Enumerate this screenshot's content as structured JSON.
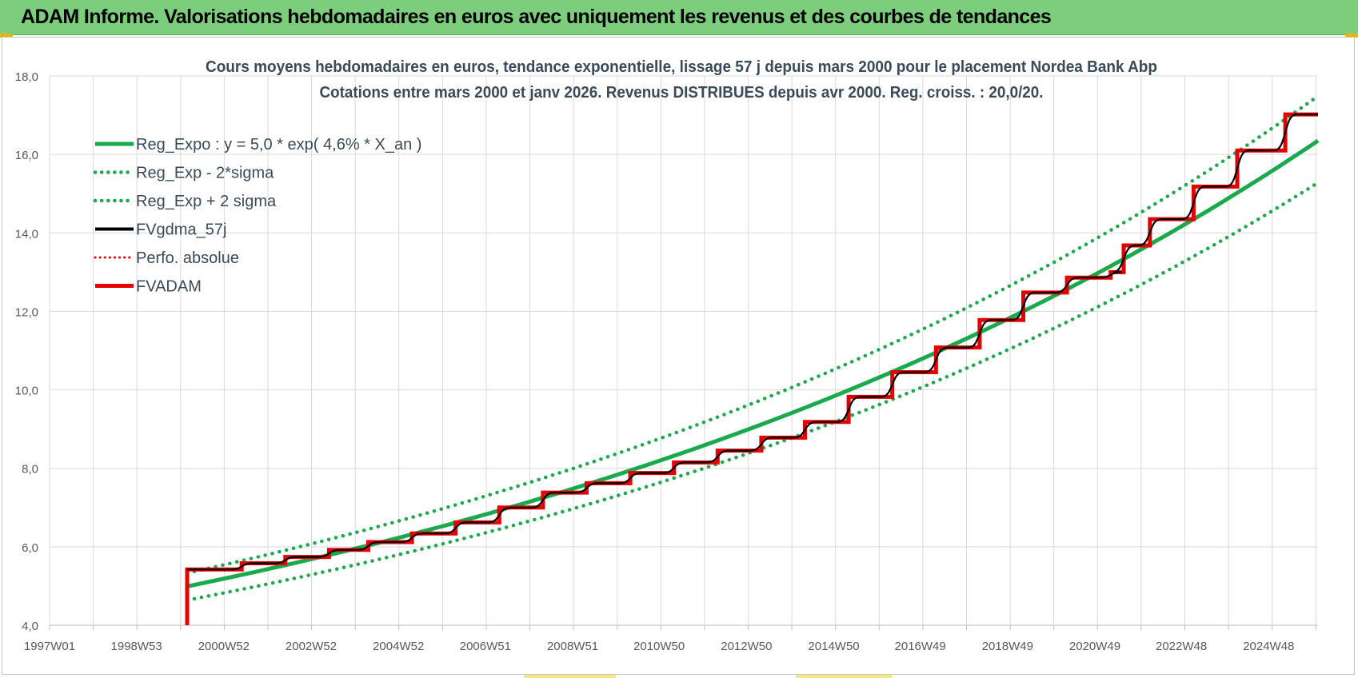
{
  "header": {
    "title": "ADAM Informe. Valorisations hebdomadaires en euros avec uniquement les revenus et des courbes de tendances"
  },
  "chart_data": {
    "type": "line",
    "title": "Cours moyens hebdomadaires en euros, tendance exponentielle, lissage 57 j depuis mars 2000 pour le placement Nordea Bank Abp",
    "subtitle": "Cotations entre mars 2000 et janv 2026. Revenus DISTRIBUES depuis avr 2000. Reg. croiss. : 20,0/20.",
    "xlabel": "",
    "ylabel": "",
    "ylim": [
      4.0,
      18.0
    ],
    "yticks": [
      "4,0",
      "6,0",
      "8,0",
      "10,0",
      "12,0",
      "14,0",
      "16,0",
      "18,0"
    ],
    "xlim": [
      1997.0,
      2026.05
    ],
    "xticks": [
      {
        "x": 1997.0,
        "label": "1997W01"
      },
      {
        "x": 1998.99,
        "label": "1998W53"
      },
      {
        "x": 2000.99,
        "label": "2000W52"
      },
      {
        "x": 2002.99,
        "label": "2002W52"
      },
      {
        "x": 2004.99,
        "label": "2004W52"
      },
      {
        "x": 2006.98,
        "label": "2006W51"
      },
      {
        "x": 2008.98,
        "label": "2008W51"
      },
      {
        "x": 2010.96,
        "label": "2010W50"
      },
      {
        "x": 2012.96,
        "label": "2012W50"
      },
      {
        "x": 2014.96,
        "label": "2014W50"
      },
      {
        "x": 2016.94,
        "label": "2016W49"
      },
      {
        "x": 2018.94,
        "label": "2018W49"
      },
      {
        "x": 2020.94,
        "label": "2020W49"
      },
      {
        "x": 2022.92,
        "label": "2022W48"
      },
      {
        "x": 2024.92,
        "label": "2024W48"
      }
    ],
    "grid": true,
    "legend_position": "top-left",
    "colors": {
      "trend": "#1aaa4c",
      "fvgdma": "#000000",
      "perfo": "#e00000",
      "fvadam": "#e60000",
      "grid": "#d9d9d9",
      "text": "#3a4a5a"
    },
    "series": [
      {
        "name": "Reg_Expo : y = 5,0 * exp( 4,6% *  X_an )",
        "style": "solid-green",
        "points": [
          [
            2000.15,
            4.99
          ],
          [
            2026.05,
            16.35
          ]
        ]
      },
      {
        "name": "Reg_Exp - 2*sigma",
        "style": "dotted-green",
        "points": [
          [
            2000.15,
            4.64
          ],
          [
            2026.05,
            15.28
          ]
        ]
      },
      {
        "name": "Reg_Exp + 2 sigma",
        "style": "dotted-green",
        "points": [
          [
            2000.15,
            5.33
          ],
          [
            2026.05,
            17.49
          ]
        ]
      },
      {
        "name": "FVgdma_57j",
        "style": "solid-black",
        "points": []
      },
      {
        "name": "Perfo. absolue",
        "style": "dotted-red",
        "points": []
      },
      {
        "name": "FVADAM",
        "style": "solid-red",
        "start": [
          2000.15,
          4.0
        ],
        "steps": [
          [
            2000.15,
            5.42
          ],
          [
            2001.4,
            5.58
          ],
          [
            2002.4,
            5.74
          ],
          [
            2003.4,
            5.92
          ],
          [
            2004.3,
            6.12
          ],
          [
            2005.3,
            6.34
          ],
          [
            2006.3,
            6.62
          ],
          [
            2007.3,
            7.0
          ],
          [
            2008.3,
            7.38
          ],
          [
            2009.3,
            7.62
          ],
          [
            2010.3,
            7.88
          ],
          [
            2011.3,
            8.15
          ],
          [
            2012.3,
            8.45
          ],
          [
            2013.3,
            8.78
          ],
          [
            2014.3,
            9.18
          ],
          [
            2015.3,
            9.82
          ],
          [
            2016.3,
            10.45
          ],
          [
            2017.3,
            11.08
          ],
          [
            2018.3,
            11.78
          ],
          [
            2019.3,
            12.48
          ],
          [
            2020.3,
            12.86
          ],
          [
            2021.3,
            13.0
          ],
          [
            2021.6,
            13.68
          ],
          [
            2022.2,
            14.35
          ],
          [
            2023.2,
            15.18
          ],
          [
            2024.2,
            16.1
          ],
          [
            2025.3,
            17.02
          ]
        ],
        "end": [
          2026.05,
          17.02
        ]
      }
    ]
  }
}
